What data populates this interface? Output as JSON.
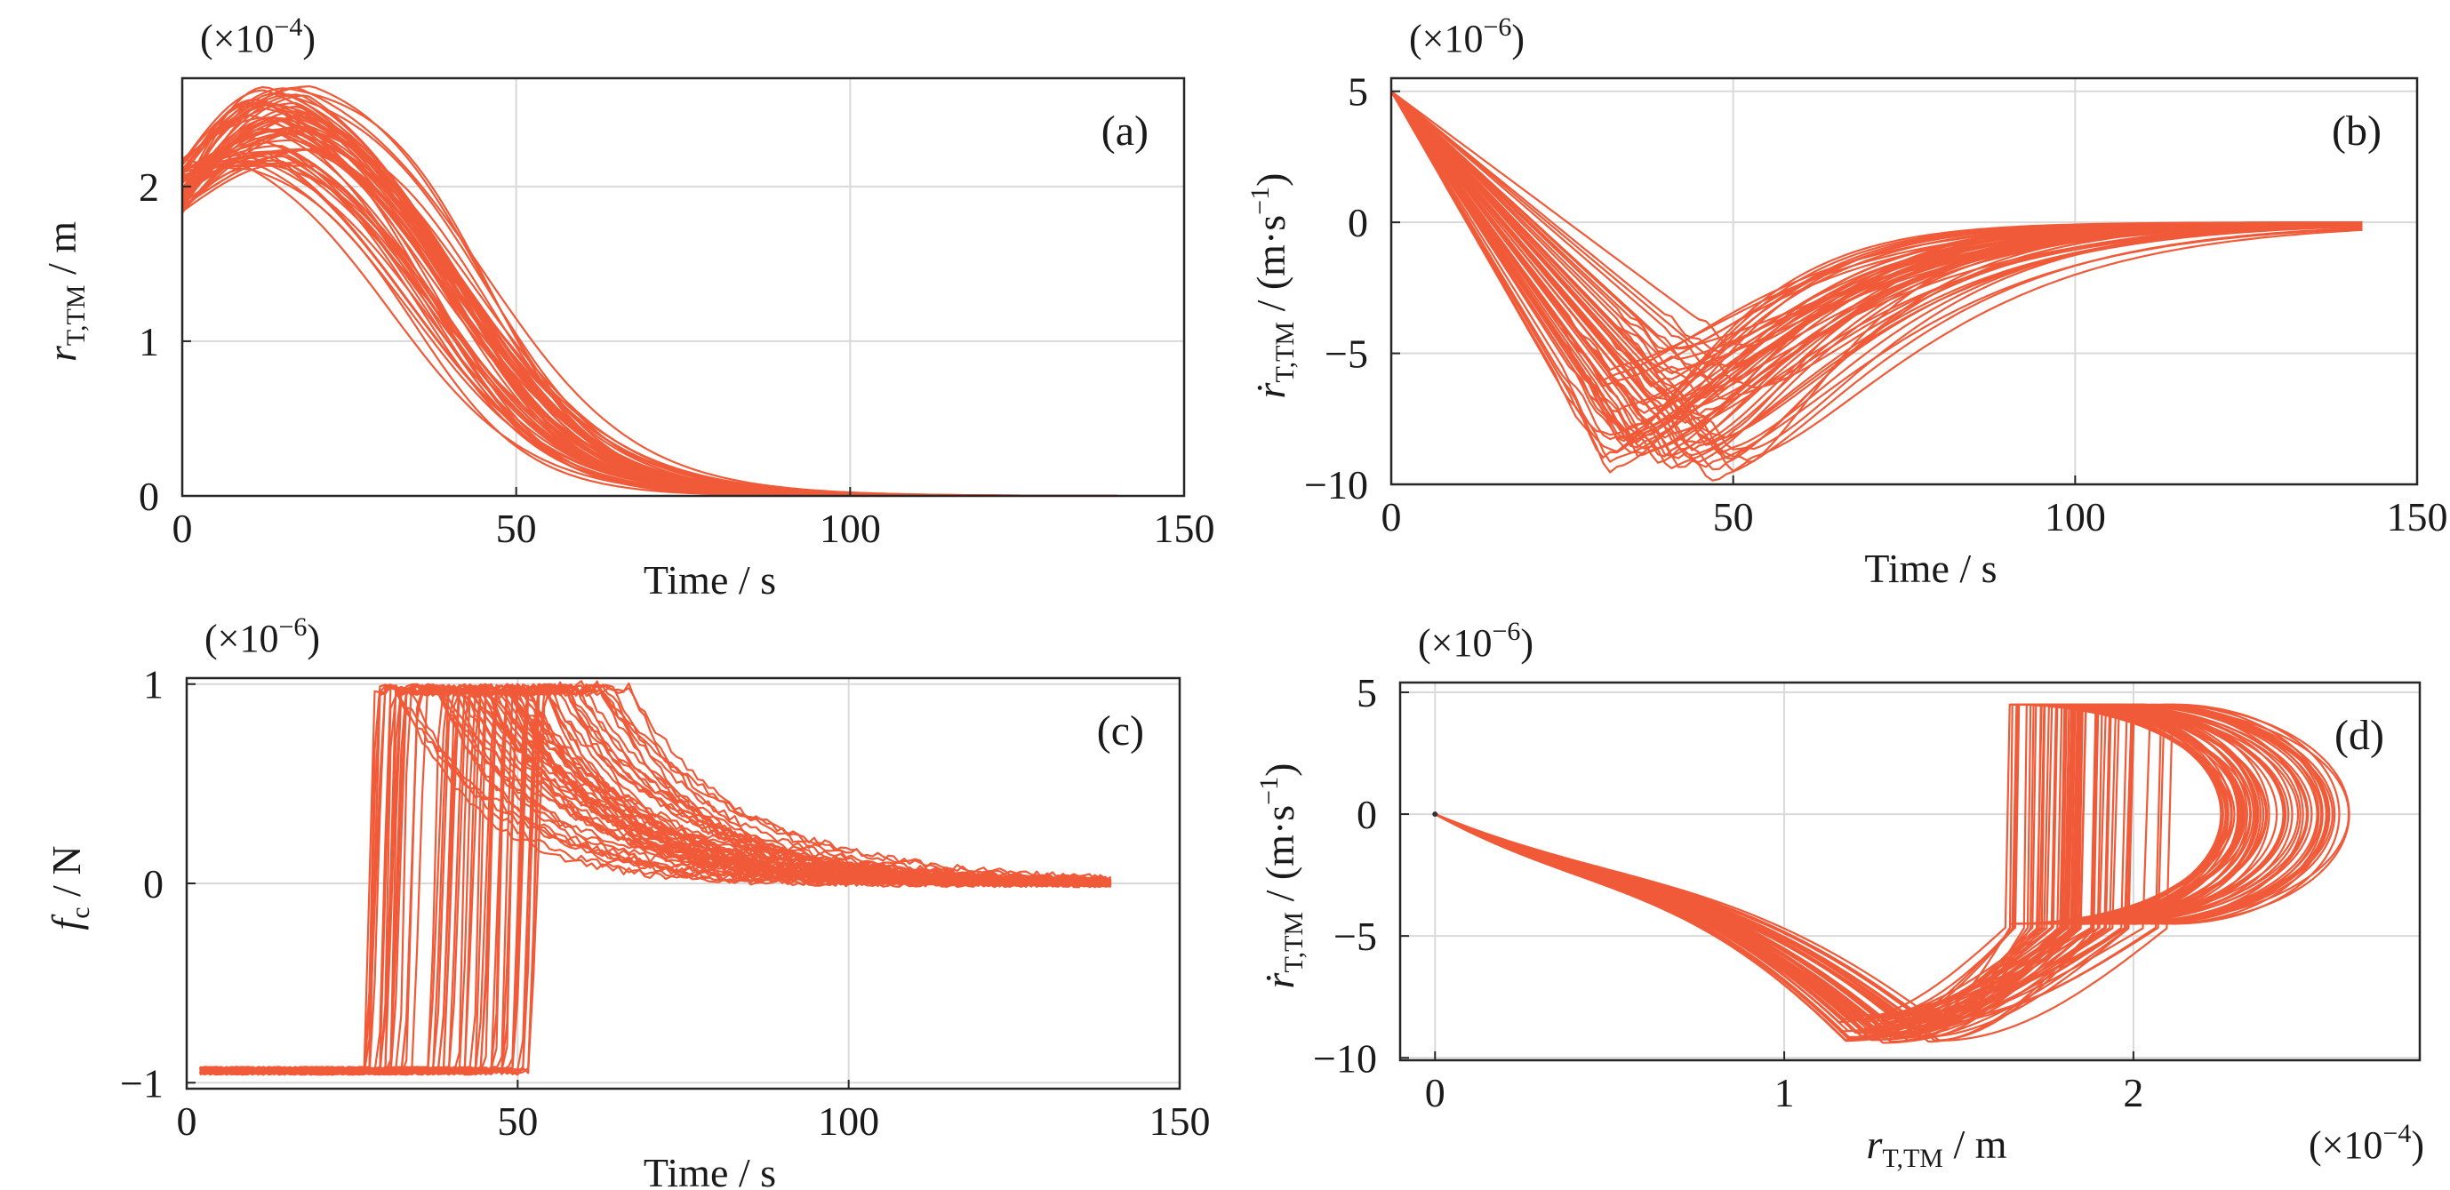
{
  "colors": {
    "series": "#f05a38",
    "axis": "#262626",
    "grid": "#d9d9d9"
  },
  "chart_data": [
    {
      "panel": "(a)",
      "type": "line",
      "xlabel": "Time / s",
      "ylabel": {
        "base": "r",
        "sub": "T,TM",
        "unit": " / m"
      },
      "exponent": {
        "prefix": "(×10",
        "power": "−4",
        "suffix": ")"
      },
      "xlim": [
        0,
        150
      ],
      "ylim": [
        0,
        2.7
      ],
      "xticks": [
        0,
        50,
        100,
        150
      ],
      "xticklabels": [
        "0",
        "50",
        "100",
        "150"
      ],
      "yticks": [
        0,
        1,
        2
      ],
      "yticklabels": [
        "0",
        "1",
        "2"
      ],
      "grid": true,
      "ensemble": {
        "count": 60,
        "t_end": 140,
        "start_range": [
          1.82,
          2.18
        ],
        "peak_range": [
          2.08,
          2.65
        ],
        "peak_time_range": [
          10,
          20
        ],
        "decay_mid_range": [
          30,
          50
        ]
      }
    },
    {
      "panel": "(b)",
      "type": "line",
      "xlabel": "Time / s",
      "ylabel": {
        "base": "ṙ",
        "sub": "T,TM",
        "unit": " / (m·s",
        "unit_sup": "−1",
        "unit_end": ")"
      },
      "exponent": {
        "prefix": "(×10",
        "power": "−6",
        "suffix": ")"
      },
      "xlim": [
        0,
        150
      ],
      "ylim": [
        -10,
        5.5
      ],
      "xticks": [
        0,
        50,
        100,
        150
      ],
      "xticklabels": [
        "0",
        "50",
        "100",
        "150"
      ],
      "yticks": [
        -10,
        -5,
        0,
        5
      ],
      "yticklabels": [
        "−10",
        "−5",
        "0",
        "5"
      ],
      "grid": true,
      "ensemble": {
        "count": 60,
        "t_end": 142,
        "start": 5,
        "min_range": [
          -9.8,
          -4.8
        ],
        "min_time_range": [
          30,
          52
        ]
      }
    },
    {
      "panel": "(c)",
      "type": "line",
      "xlabel": "Time / s",
      "ylabel": {
        "base": "f",
        "sub": "c",
        "unit": " / N"
      },
      "exponent": {
        "prefix": "(×10",
        "power": "−6",
        "suffix": ")"
      },
      "xlim": [
        0,
        150
      ],
      "ylim": [
        -1.03,
        1.03
      ],
      "xticks": [
        0,
        50,
        100,
        150
      ],
      "xticklabels": [
        "0",
        "50",
        "100",
        "150"
      ],
      "yticks": [
        -1,
        0,
        1
      ],
      "yticklabels": [
        "−1",
        "0",
        "1"
      ],
      "grid": true,
      "ensemble": {
        "count": 60,
        "t_end": 140,
        "low": -0.94,
        "high": 1.0,
        "switch_time_range": [
          27,
          52
        ]
      }
    },
    {
      "panel": "(d)",
      "type": "line",
      "xlabel": {
        "base": "r",
        "sub": "T,TM",
        "unit": " / m"
      },
      "ylabel": {
        "base": "ṙ",
        "sub": "T,TM",
        "unit": " / (m·s",
        "unit_sup": "−1",
        "unit_end": ")"
      },
      "exponent_y": {
        "prefix": "(×10",
        "power": "−6",
        "suffix": ")"
      },
      "exponent_x": {
        "prefix": "(×10",
        "power": "−4",
        "suffix": ")"
      },
      "xlim": [
        -0.1,
        2.82
      ],
      "ylim": [
        -10.1,
        5.4
      ],
      "xticks": [
        0,
        1,
        2
      ],
      "xticklabels": [
        "0",
        "1",
        "2"
      ],
      "yticks": [
        -10,
        -5,
        0,
        5
      ],
      "yticklabels": [
        "−10",
        "−5",
        "0",
        "5"
      ],
      "grid": true,
      "ensemble": {
        "count": 60,
        "x_max_range": [
          2.25,
          2.62
        ],
        "bottom_x_range": [
          1.15,
          1.45
        ],
        "bottom_y_range": [
          -9.4,
          -8.2
        ]
      }
    }
  ]
}
